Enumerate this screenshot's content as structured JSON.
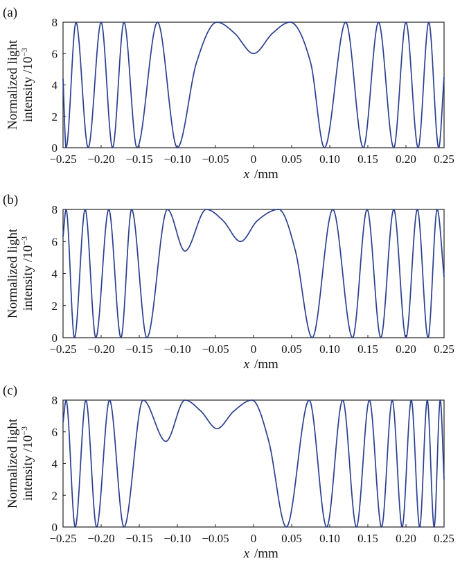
{
  "figure": {
    "chart_data": [
      {
        "type": "line",
        "panel_label": "(a)",
        "xlabel_var": "x",
        "xlabel_unit": "/mm",
        "ylabel_line1": "Normalized light",
        "ylabel_line2": "intensity /10",
        "ylabel_exp": "−3",
        "xlim": [
          -0.25,
          0.25
        ],
        "ylim": [
          0,
          8
        ],
        "xticks": [
          -0.25,
          -0.2,
          -0.15,
          -0.1,
          -0.05,
          0,
          0.05,
          0.1,
          0.15,
          0.2,
          0.25
        ],
        "xtick_labels": [
          "−0.25",
          "−0.20",
          "−0.15",
          "−0.10",
          "−0.05",
          "0",
          "0.05",
          "0.10",
          "0.15",
          "0.20",
          "0.25"
        ],
        "yticks": [
          0,
          2,
          4,
          6,
          8
        ],
        "ytick_labels": [
          "0",
          "2",
          "4",
          "6",
          "8"
        ],
        "series": [
          {
            "color": "#2a3f8f",
            "x": [
              -0.25,
              -0.246,
              -0.233,
              -0.217,
              -0.2,
              -0.185,
              -0.17,
              -0.153,
              -0.126,
              -0.1,
              -0.075,
              -0.048,
              -0.025,
              0,
              0.025,
              0.048,
              0.075,
              0.093,
              0.121,
              0.144,
              0.164,
              0.184,
              0.2,
              0.216,
              0.23,
              0.243,
              0.25
            ],
            "y": [
              4.4,
              0,
              8,
              0,
              8,
              0,
              8,
              0,
              8,
              0,
              5.4,
              8,
              7.3,
              6,
              7.3,
              8,
              5.4,
              0,
              8,
              0,
              8,
              0,
              8,
              0,
              8,
              0,
              4.5
            ]
          }
        ]
      },
      {
        "type": "line",
        "panel_label": "(b)",
        "xlabel_var": "x",
        "xlabel_unit": "/mm",
        "ylabel_line1": "Normalized light",
        "ylabel_line2": "intensity /10",
        "ylabel_exp": "−3",
        "xlim": [
          -0.25,
          0.25
        ],
        "ylim": [
          0,
          8
        ],
        "xticks": [
          -0.25,
          -0.2,
          -0.15,
          -0.1,
          -0.05,
          0,
          0.05,
          0.1,
          0.15,
          0.2,
          0.25
        ],
        "xtick_labels": [
          "−0.25",
          "−0.20",
          "−0.15",
          "−0.10",
          "−0.05",
          "0",
          "0.05",
          "0.10",
          "0.15",
          "0.20",
          "0.25"
        ],
        "yticks": [
          0,
          2,
          4,
          6,
          8
        ],
        "ytick_labels": [
          "0",
          "2",
          "4",
          "6",
          "8"
        ],
        "series": [
          {
            "color": "#2a3f8f",
            "x": [
              -0.25,
              -0.246,
              -0.235,
              -0.221,
              -0.207,
              -0.19,
              -0.174,
              -0.16,
              -0.14,
              -0.113,
              -0.09,
              -0.062,
              -0.04,
              -0.017,
              0.005,
              0.033,
              0.055,
              0.077,
              0.104,
              0.13,
              0.149,
              0.167,
              0.184,
              0.2,
              0.215,
              0.229,
              0.241,
              0.25
            ],
            "y": [
              6.3,
              8,
              0,
              8,
              0,
              8,
              0,
              8,
              0,
              8,
              5.4,
              8,
              7.3,
              6,
              7.3,
              8,
              5.4,
              0,
              8,
              0,
              8,
              0,
              8,
              0,
              8,
              0,
              8,
              3.8
            ]
          }
        ]
      },
      {
        "type": "line",
        "panel_label": "(c)",
        "xlabel_var": "x",
        "xlabel_unit": "/mm",
        "ylabel_line1": "Normalized light",
        "ylabel_line2": "intensity /10",
        "ylabel_exp": "−3",
        "xlim": [
          -0.25,
          0.25
        ],
        "ylim": [
          0,
          8
        ],
        "xticks": [
          -0.25,
          -0.2,
          -0.15,
          -0.1,
          -0.05,
          0,
          0.05,
          0.1,
          0.15,
          0.2,
          0.25
        ],
        "xtick_labels": [
          "−0.25",
          "−0.20",
          "−0.15",
          "−0.10",
          "−0.05",
          "0",
          "0.05",
          "0.10",
          "0.15",
          "0.20",
          "0.25"
        ],
        "yticks": [
          0,
          2,
          4,
          6,
          8
        ],
        "ytick_labels": [
          "0",
          "2",
          "4",
          "6",
          "8"
        ],
        "series": [
          {
            "color": "#2a3f8f",
            "x": [
              -0.25,
              -0.246,
              -0.234,
              -0.22,
              -0.206,
              -0.189,
              -0.17,
              -0.145,
              -0.115,
              -0.09,
              -0.069,
              -0.048,
              -0.026,
              -0.002,
              0.02,
              0.043,
              0.073,
              0.096,
              0.117,
              0.135,
              0.152,
              0.168,
              0.182,
              0.195,
              0.207,
              0.218,
              0.228,
              0.237,
              0.245,
              0.25
            ],
            "y": [
              6.6,
              8,
              0,
              8,
              0,
              8,
              0,
              8,
              5.4,
              8,
              7.3,
              6.2,
              7.3,
              8,
              5.4,
              0,
              8,
              0,
              8,
              0,
              8,
              0,
              8,
              0,
              8,
              0,
              8,
              0,
              8,
              3.0
            ]
          }
        ]
      }
    ]
  }
}
